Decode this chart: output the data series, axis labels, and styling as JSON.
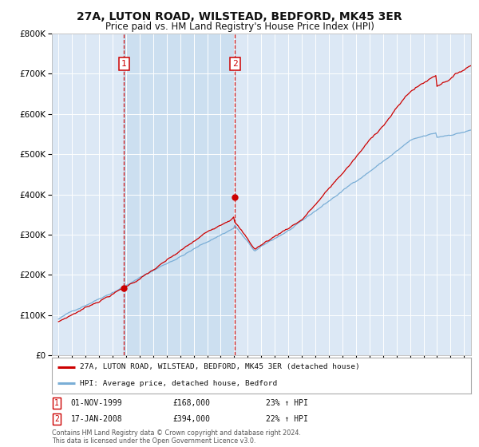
{
  "title": "27A, LUTON ROAD, WILSTEAD, BEDFORD, MK45 3ER",
  "subtitle": "Price paid vs. HM Land Registry's House Price Index (HPI)",
  "background_color": "#ffffff",
  "plot_bg_color": "#dce8f5",
  "grid_color": "#ffffff",
  "red_line_color": "#cc0000",
  "blue_line_color": "#7aaed6",
  "sale1_date_year": 1999.83,
  "sale1_price": 168000,
  "sale2_date_year": 2008.04,
  "sale2_price": 394000,
  "legend1": "27A, LUTON ROAD, WILSTEAD, BEDFORD, MK45 3ER (detached house)",
  "legend2": "HPI: Average price, detached house, Bedford",
  "note1_date": "01-NOV-1999",
  "note1_price": "£168,000",
  "note1_hpi": "23% ↑ HPI",
  "note2_date": "17-JAN-2008",
  "note2_price": "£394,000",
  "note2_hpi": "22% ↑ HPI",
  "footer": "Contains HM Land Registry data © Crown copyright and database right 2024.\nThis data is licensed under the Open Government Licence v3.0.",
  "ylim_min": 0,
  "ylim_max": 800000,
  "xmin": 1994.5,
  "xmax": 2025.5
}
